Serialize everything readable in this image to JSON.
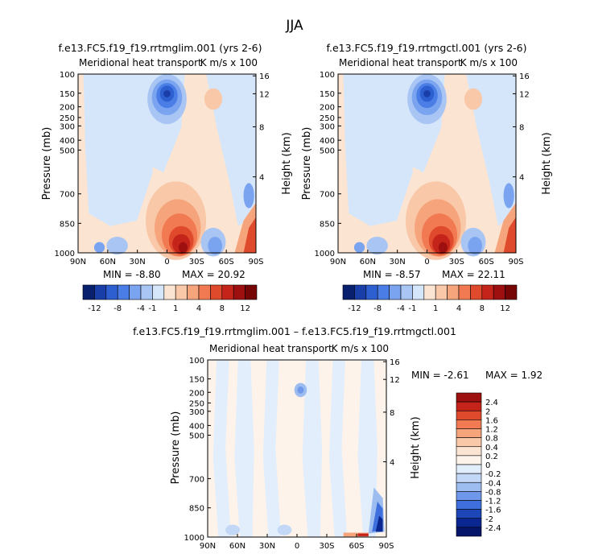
{
  "page_title": "JJA",
  "chart_data": [
    {
      "type": "heatmap",
      "title": "f.e13.FC5.f19_f19.rrtmglim.001 (yrs 2-6)",
      "subtitle": "Meridional heat transport",
      "units": "K m/s x 100",
      "ylabel": "Pressure (mb)",
      "ylabel_right": "Height (km)",
      "x_ticks": [
        "90N",
        "60N",
        "30N",
        "0",
        "30S",
        "60S",
        "90S"
      ],
      "y_ticks": [
        "100",
        "150",
        "200",
        "250",
        "300",
        "400",
        "500",
        "700",
        "850",
        "1000"
      ],
      "y_ticks_right": [
        "16",
        "12",
        "8",
        "4"
      ],
      "min_label": "MIN = -8.80",
      "max_label": "MAX = 20.92",
      "colorbar_labels": [
        "-12",
        "-8",
        "-4",
        "-1",
        "1",
        "4",
        "8",
        "12"
      ],
      "colorbar_colors": [
        "#08206e",
        "#1a3ea8",
        "#2e5fd0",
        "#4a7ee6",
        "#7aa4ef",
        "#a8c5f4",
        "#d6e6fa",
        "#fbe4d1",
        "#f9c8a8",
        "#f6a47c",
        "#f27a52",
        "#e04a2c",
        "#c5241a",
        "#9e0f0f",
        "#760606"
      ]
    },
    {
      "type": "heatmap",
      "title": "f.e13.FC5.f19_f19.rrtmgctl.001 (yrs 2-6)",
      "subtitle": "Meridional heat transport",
      "units": "K m/s x 100",
      "ylabel": "Pressure (mb)",
      "ylabel_right": "Height (km)",
      "x_ticks": [
        "90N",
        "60N",
        "30N",
        "0",
        "30S",
        "60S",
        "90S"
      ],
      "y_ticks": [
        "100",
        "150",
        "200",
        "250",
        "300",
        "400",
        "500",
        "700",
        "850",
        "1000"
      ],
      "y_ticks_right": [
        "16",
        "12",
        "8",
        "4"
      ],
      "min_label": "MIN = -8.57",
      "max_label": "MAX = 22.11",
      "colorbar_labels": [
        "-12",
        "-8",
        "-4",
        "-1",
        "1",
        "4",
        "8",
        "12"
      ],
      "colorbar_colors": [
        "#08206e",
        "#1a3ea8",
        "#2e5fd0",
        "#4a7ee6",
        "#7aa4ef",
        "#a8c5f4",
        "#d6e6fa",
        "#fbe4d1",
        "#f9c8a8",
        "#f6a47c",
        "#f27a52",
        "#e04a2c",
        "#c5241a",
        "#9e0f0f",
        "#760606"
      ]
    },
    {
      "type": "heatmap",
      "title": "f.e13.FC5.f19_f19.rrtmglim.001 – f.e13.FC5.f19_f19.rrtmgctl.001",
      "subtitle": "Meridional heat transport",
      "units": "K m/s x 100",
      "ylabel": "Pressure (mb)",
      "ylabel_right": "Height (km)",
      "x_ticks": [
        "90N",
        "60N",
        "30N",
        "0",
        "30S",
        "60S",
        "90S"
      ],
      "y_ticks": [
        "100",
        "150",
        "200",
        "250",
        "300",
        "400",
        "500",
        "700",
        "850",
        "1000"
      ],
      "y_ticks_right": [
        "16",
        "12",
        "8",
        "4"
      ],
      "min_label": "MIN = -2.61",
      "max_label": "MAX = 1.92",
      "colorbar_labels": [
        "2.4",
        "2",
        "1.6",
        "1.2",
        "0.8",
        "0.4",
        "0.2",
        "0",
        "-0.2",
        "-0.4",
        "-0.8",
        "-1.2",
        "-1.6",
        "-2",
        "-2.4"
      ],
      "colorbar_colors": [
        "#9e0f0f",
        "#c5241a",
        "#e04a2c",
        "#f27a52",
        "#f6a47c",
        "#f9c8a8",
        "#fbe4d1",
        "#fdf3ea",
        "#e2eefb",
        "#c2d8f6",
        "#9dbdf1",
        "#6f98ea",
        "#3e6fdc",
        "#1d46b8",
        "#0a2690",
        "#04156a"
      ]
    }
  ]
}
